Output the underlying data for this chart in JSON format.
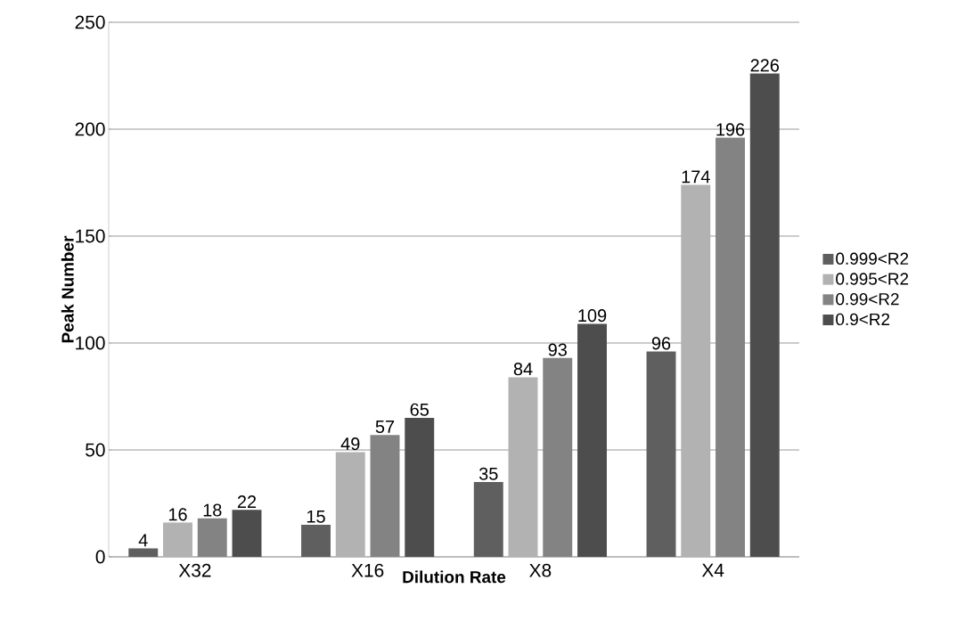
{
  "chart_data": {
    "type": "bar",
    "xlabel": "Dilution Rate",
    "ylabel": "Peak Number",
    "categories": [
      "X32",
      "X16",
      "X8",
      "X4"
    ],
    "series": [
      {
        "name": "0.999<R2",
        "color": "#5f5f5f",
        "values": [
          4,
          15,
          35,
          96
        ]
      },
      {
        "name": "0.995<R2",
        "color": "#b2b2b2",
        "values": [
          16,
          49,
          84,
          174
        ]
      },
      {
        "name": "0.99<R2",
        "color": "#838383",
        "values": [
          18,
          57,
          93,
          196
        ]
      },
      {
        "name": "0.9<R2",
        "color": "#4d4d4d",
        "values": [
          22,
          65,
          109,
          226
        ]
      }
    ],
    "ylim": [
      0,
      250
    ],
    "yticks": [
      0,
      50,
      100,
      150,
      200,
      250
    ],
    "grid": "y",
    "legend": "right",
    "data_labels": true
  }
}
